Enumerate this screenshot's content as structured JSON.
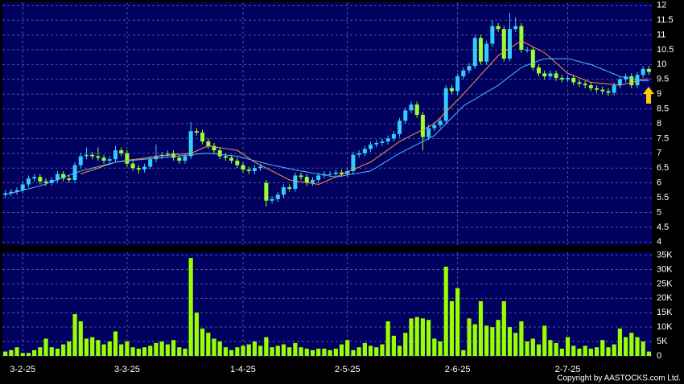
{
  "chart_data": [
    {
      "type": "candlestick",
      "up_color": "#33ccff",
      "down_color": "#99ff33",
      "grid": true,
      "ylim": [
        3.9,
        12.1
      ],
      "yticks": [
        4,
        4.5,
        5,
        5.5,
        6,
        6.5,
        7,
        7.5,
        8,
        8.5,
        9,
        9.5,
        10,
        10.5,
        11,
        11.5,
        12
      ],
      "open": [
        5.6,
        5.65,
        5.7,
        5.75,
        5.95,
        6.15,
        6.2,
        6.05,
        6.0,
        6.1,
        6.3,
        6.15,
        6.1,
        6.6,
        6.9,
        6.95,
        6.9,
        6.85,
        6.75,
        6.8,
        7.1,
        7.0,
        6.65,
        6.5,
        6.45,
        6.55,
        6.8,
        6.9,
        6.95,
        7.0,
        6.85,
        6.75,
        6.9,
        7.75,
        7.7,
        7.4,
        7.25,
        7.1,
        6.9,
        6.85,
        6.75,
        6.6,
        6.45,
        6.4,
        6.5,
        6.0,
        5.4,
        5.45,
        5.6,
        5.85,
        5.8,
        6.25,
        6.2,
        6.0,
        6.1,
        6.25,
        6.3,
        6.3,
        6.35,
        6.3,
        6.4,
        6.95,
        7.0,
        7.15,
        7.3,
        7.35,
        7.4,
        7.5,
        7.65,
        8.1,
        8.45,
        8.65,
        8.3,
        7.55,
        7.85,
        7.95,
        8.1,
        9.2,
        9.1,
        9.6,
        9.8,
        9.95,
        10.9,
        10.1,
        10.7,
        11.3,
        11.2,
        10.2,
        11.2,
        11.3,
        10.5,
        10.5,
        9.9,
        9.7,
        9.6,
        9.7,
        9.55,
        9.5,
        9.55,
        9.4,
        9.35,
        9.3,
        9.2,
        9.15,
        9.1,
        9.05,
        9.3,
        9.5,
        9.6,
        9.3,
        9.65,
        9.85
      ],
      "high": [
        5.75,
        5.8,
        5.85,
        6.05,
        6.25,
        6.3,
        6.3,
        6.15,
        6.2,
        6.4,
        6.4,
        6.25,
        6.7,
        7.0,
        7.2,
        7.05,
        7.2,
        6.95,
        6.9,
        7.25,
        7.2,
        7.1,
        6.75,
        6.6,
        6.65,
        6.9,
        7.3,
        7.05,
        7.1,
        7.1,
        6.95,
        7.0,
        8.05,
        7.85,
        7.8,
        7.5,
        7.35,
        7.2,
        7.0,
        6.95,
        6.85,
        6.7,
        6.55,
        6.6,
        6.65,
        6.1,
        5.55,
        5.7,
        5.95,
        5.95,
        6.35,
        6.35,
        6.3,
        6.2,
        6.35,
        6.4,
        6.4,
        6.45,
        6.45,
        6.5,
        7.05,
        7.1,
        7.25,
        7.4,
        7.45,
        7.5,
        7.6,
        7.75,
        8.2,
        8.55,
        8.75,
        8.75,
        8.4,
        7.95,
        8.05,
        8.2,
        9.3,
        9.3,
        9.7,
        9.9,
        10.05,
        11.0,
        11.0,
        10.8,
        11.5,
        11.4,
        11.3,
        11.75,
        11.6,
        11.4,
        10.6,
        10.6,
        10.0,
        9.8,
        9.8,
        9.8,
        9.65,
        9.65,
        9.65,
        9.5,
        9.45,
        9.4,
        9.3,
        9.25,
        9.2,
        9.4,
        9.6,
        9.7,
        9.7,
        9.75,
        9.95,
        9.95
      ],
      "low": [
        5.5,
        5.55,
        5.6,
        5.65,
        5.85,
        6.05,
        5.95,
        5.9,
        5.9,
        6.0,
        6.05,
        6.0,
        6.0,
        6.5,
        6.8,
        6.8,
        6.75,
        6.65,
        6.65,
        6.7,
        6.9,
        6.55,
        6.4,
        6.3,
        6.35,
        6.45,
        6.7,
        6.8,
        6.85,
        6.75,
        6.65,
        6.65,
        6.8,
        7.6,
        7.3,
        7.15,
        7.0,
        6.8,
        6.75,
        6.65,
        6.5,
        6.35,
        6.3,
        6.3,
        6.4,
        5.2,
        5.3,
        5.35,
        5.5,
        5.7,
        5.7,
        6.1,
        5.9,
        5.9,
        6.0,
        6.15,
        6.2,
        6.2,
        6.2,
        6.2,
        6.3,
        6.85,
        6.9,
        7.05,
        7.2,
        7.25,
        7.3,
        7.4,
        7.55,
        8.0,
        8.35,
        8.2,
        7.1,
        7.45,
        7.75,
        7.85,
        8.0,
        9.0,
        9.0,
        9.5,
        9.7,
        9.85,
        10.0,
        10.0,
        10.6,
        11.1,
        10.1,
        10.1,
        11.1,
        10.4,
        10.4,
        9.8,
        9.6,
        9.5,
        9.5,
        9.45,
        9.4,
        9.4,
        9.3,
        9.25,
        9.2,
        9.1,
        9.05,
        9.0,
        8.95,
        8.95,
        9.2,
        9.4,
        9.2,
        9.2,
        9.55,
        9.65
      ],
      "close": [
        5.65,
        5.7,
        5.75,
        5.95,
        6.15,
        6.2,
        6.05,
        6.0,
        6.1,
        6.3,
        6.15,
        6.1,
        6.6,
        6.9,
        6.95,
        6.9,
        6.85,
        6.75,
        6.8,
        7.1,
        7.0,
        6.65,
        6.5,
        6.45,
        6.55,
        6.8,
        6.9,
        6.95,
        7.0,
        6.85,
        6.75,
        6.9,
        7.75,
        7.7,
        7.4,
        7.25,
        7.1,
        6.9,
        6.85,
        6.75,
        6.6,
        6.45,
        6.4,
        6.5,
        6.55,
        5.4,
        5.45,
        5.6,
        5.85,
        5.8,
        6.25,
        6.2,
        6.0,
        6.1,
        6.25,
        6.3,
        6.3,
        6.35,
        6.3,
        6.4,
        6.95,
        7.0,
        7.15,
        7.3,
        7.35,
        7.4,
        7.5,
        7.65,
        8.1,
        8.45,
        8.65,
        8.3,
        7.55,
        7.85,
        7.95,
        8.1,
        9.2,
        9.1,
        9.6,
        9.8,
        9.95,
        10.9,
        10.1,
        10.7,
        11.3,
        11.2,
        10.2,
        11.2,
        11.3,
        10.5,
        10.5,
        9.9,
        9.7,
        9.6,
        9.7,
        9.55,
        9.5,
        9.55,
        9.4,
        9.35,
        9.3,
        9.2,
        9.15,
        9.1,
        9.05,
        9.3,
        9.5,
        9.6,
        9.3,
        9.65,
        9.85,
        9.75
      ],
      "lines": [
        {
          "color": "#ff9933",
          "values": [
            null,
            null,
            null,
            null,
            null,
            null,
            null,
            null,
            null,
            null,
            null,
            null,
            null,
            6.3,
            6.37,
            6.43,
            6.5,
            6.57,
            6.63,
            6.7,
            6.73,
            6.76,
            6.79,
            6.81,
            6.84,
            6.87,
            6.9,
            6.92,
            6.93,
            6.95,
            6.97,
            6.98,
            7.0,
            7.08,
            7.17,
            7.25,
            7.22,
            7.19,
            7.16,
            7.13,
            7.1,
            6.97,
            6.83,
            6.7,
            6.6,
            6.5,
            6.4,
            6.3,
            6.2,
            6.1,
            6.07,
            6.04,
            6.01,
            5.98,
            5.95,
            6.03,
            6.12,
            6.2,
            6.28,
            6.37,
            6.45,
            6.53,
            6.62,
            6.7,
            6.84,
            6.98,
            7.12,
            7.26,
            7.4,
            7.5,
            7.6,
            7.7,
            7.8,
            7.9,
            8.0,
            8.2,
            8.4,
            8.6,
            8.8,
            9.0,
            9.22,
            9.43,
            9.65,
            9.87,
            10.08,
            10.3,
            10.43,
            10.55,
            10.68,
            10.8,
            10.7,
            10.6,
            10.5,
            10.4,
            10.23,
            10.05,
            9.88,
            9.7,
            9.63,
            9.55,
            9.48,
            9.4,
            9.38,
            9.36,
            9.34,
            9.32,
            9.3,
            9.35,
            9.4,
            9.45,
            9.5,
            9.52
          ]
        },
        {
          "color": "#55bbff",
          "values": [
            5.6,
            5.65,
            5.7,
            5.75,
            5.8,
            5.85,
            5.9,
            5.97,
            6.04,
            6.11,
            6.19,
            6.26,
            6.33,
            6.4,
            6.45,
            6.5,
            6.55,
            6.6,
            6.65,
            6.7,
            6.72,
            6.74,
            6.76,
            6.78,
            6.8,
            6.82,
            6.84,
            6.85,
            6.87,
            6.89,
            6.91,
            6.93,
            6.95,
            6.97,
            6.99,
            7.0,
            6.98,
            6.96,
            6.94,
            6.92,
            6.9,
            6.85,
            6.8,
            6.75,
            6.7,
            6.65,
            6.6,
            6.56,
            6.52,
            6.48,
            6.44,
            6.4,
            6.37,
            6.33,
            6.3,
            6.27,
            6.23,
            6.2,
            6.23,
            6.27,
            6.3,
            6.33,
            6.37,
            6.4,
            6.52,
            6.64,
            6.76,
            6.88,
            7.0,
            7.1,
            7.2,
            7.3,
            7.4,
            7.5,
            7.6,
            7.8,
            8.0,
            8.2,
            8.4,
            8.6,
            8.72,
            8.83,
            8.95,
            9.07,
            9.18,
            9.3,
            9.45,
            9.6,
            9.75,
            9.9,
            9.98,
            10.05,
            10.13,
            10.2,
            10.2,
            10.2,
            10.2,
            10.2,
            10.15,
            10.1,
            10.05,
            10.0,
            9.92,
            9.84,
            9.76,
            9.68,
            9.6,
            9.56,
            9.53,
            9.49,
            9.45,
            9.45
          ]
        }
      ]
    },
    {
      "type": "bar",
      "color": "#99ff00",
      "grid": true,
      "ylim": [
        0,
        36000
      ],
      "yticks": [
        0,
        {
          "value": 5000,
          "label": "5K"
        },
        {
          "value": 10000,
          "label": "10K"
        },
        {
          "value": 15000,
          "label": "15K"
        },
        {
          "value": 20000,
          "label": "20K"
        },
        {
          "value": 25000,
          "label": "25K"
        },
        {
          "value": 30000,
          "label": "30K"
        },
        {
          "value": 35000,
          "label": "35K"
        }
      ],
      "categories": [
        null,
        null,
        null,
        "3-2-25",
        null,
        null,
        null,
        null,
        null,
        null,
        null,
        null,
        null,
        null,
        null,
        null,
        null,
        null,
        null,
        null,
        null,
        "3-3-25",
        null,
        null,
        null,
        null,
        null,
        null,
        null,
        null,
        null,
        null,
        null,
        null,
        null,
        null,
        null,
        null,
        null,
        null,
        null,
        "1-4-25",
        null,
        null,
        null,
        null,
        null,
        null,
        null,
        null,
        null,
        null,
        null,
        null,
        null,
        null,
        null,
        null,
        null,
        "2-5-25",
        null,
        null,
        null,
        null,
        null,
        null,
        null,
        null,
        null,
        null,
        null,
        null,
        null,
        null,
        null,
        null,
        null,
        null,
        "2-6-25",
        null,
        null,
        null,
        null,
        null,
        null,
        null,
        null,
        null,
        null,
        null,
        null,
        null,
        null,
        null,
        null,
        null,
        null,
        "2-7-25",
        null,
        null,
        null,
        null,
        null,
        null,
        null,
        null,
        null,
        null,
        null,
        null,
        null,
        null
      ],
      "values": [
        1500,
        2000,
        3000,
        1000,
        1000,
        2000,
        3000,
        6000,
        3000,
        2500,
        4000,
        5000,
        14500,
        12000,
        6000,
        6500,
        5500,
        4000,
        5000,
        8500,
        4000,
        5000,
        3000,
        2500,
        3000,
        3500,
        4500,
        5000,
        4000,
        5500,
        3000,
        2500,
        34000,
        15000,
        9500,
        8000,
        6000,
        5000,
        3000,
        2000,
        3000,
        3500,
        4000,
        5000,
        3500,
        6500,
        3000,
        3500,
        4000,
        3000,
        4500,
        3000,
        2500,
        2000,
        2500,
        2500,
        2000,
        2500,
        4000,
        5500,
        2000,
        3000,
        4500,
        3500,
        3000,
        4000,
        12000,
        7000,
        3500,
        8000,
        13000,
        13500,
        13000,
        12500,
        6000,
        5000,
        31000,
        19000,
        23500,
        2000,
        13000,
        11000,
        19000,
        10500,
        10000,
        12500,
        19000,
        10000,
        8000,
        12000,
        5000,
        6000,
        4000,
        10500,
        5500,
        4500,
        2500,
        6500,
        3500,
        2500,
        3500,
        2500,
        3000,
        5500,
        3000,
        4000,
        9500,
        6500,
        8000,
        6500,
        5000,
        1500
      ]
    }
  ],
  "copyright": "Copyright by AASTOCKS.com Ltd."
}
